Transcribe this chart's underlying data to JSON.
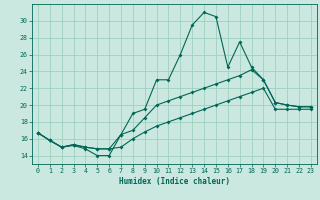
{
  "title": "",
  "xlabel": "Humidex (Indice chaleur)",
  "bg_color": "#cbe8e0",
  "grid_color": "#9ecfbf",
  "line_color": "#006655",
  "xlim": [
    -0.5,
    23.5
  ],
  "ylim": [
    13.0,
    32.0
  ],
  "xticks": [
    0,
    1,
    2,
    3,
    4,
    5,
    6,
    7,
    8,
    9,
    10,
    11,
    12,
    13,
    14,
    15,
    16,
    17,
    18,
    19,
    20,
    21,
    22,
    23
  ],
  "yticks": [
    14,
    16,
    18,
    20,
    22,
    24,
    26,
    28,
    30
  ],
  "series": [
    [
      16.7,
      15.8,
      15.0,
      15.2,
      14.8,
      14.0,
      14.0,
      16.5,
      19.0,
      19.5,
      23.0,
      23.0,
      26.0,
      29.5,
      31.0,
      30.5,
      24.5,
      27.5,
      24.5,
      23.0,
      20.3,
      20.0,
      19.8,
      19.8
    ],
    [
      16.7,
      15.8,
      15.0,
      15.3,
      15.0,
      14.8,
      14.8,
      16.5,
      17.0,
      18.5,
      20.0,
      20.5,
      21.0,
      21.5,
      22.0,
      22.5,
      23.0,
      23.5,
      24.2,
      23.0,
      20.3,
      20.0,
      19.8,
      19.8
    ],
    [
      16.7,
      15.8,
      15.0,
      15.3,
      15.0,
      14.8,
      14.8,
      15.0,
      16.0,
      16.8,
      17.5,
      18.0,
      18.5,
      19.0,
      19.5,
      20.0,
      20.5,
      21.0,
      21.5,
      22.0,
      19.5,
      19.5,
      19.5,
      19.5
    ]
  ]
}
